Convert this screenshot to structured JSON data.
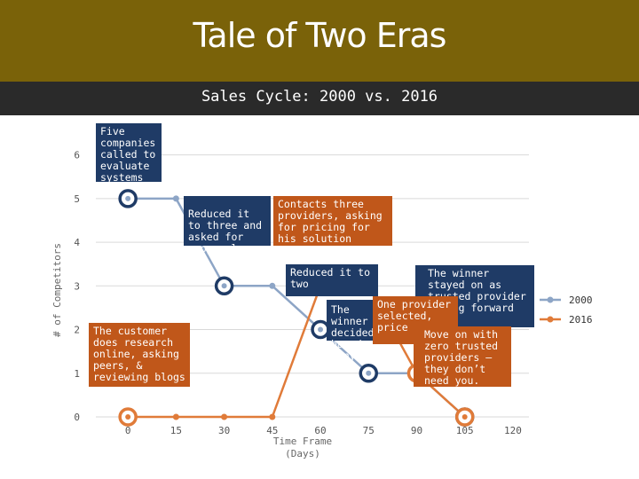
{
  "header": {
    "title": "Tale of Two Eras",
    "subtitle": "Sales Cycle: 2000 vs. 2016"
  },
  "colors": {
    "title_band": "#7a6209",
    "subtitle_band": "#2a2a2a",
    "series_2000": "#1f3b66",
    "series_2016": "#e07b39",
    "callout_blue": "#1f3b66",
    "callout_orange": "#c0571a"
  },
  "chart_data": {
    "type": "line",
    "title": "Tale of Two Eras",
    "subtitle": "Sales Cycle: 2000 vs. 2016",
    "xlabel": "Time Frame (Days)",
    "ylabel": "# of Competitors",
    "x_ticks": [
      0,
      15,
      30,
      45,
      60,
      75,
      90,
      105,
      120
    ],
    "y_ticks": [
      0,
      1,
      2,
      3,
      4,
      5,
      6
    ],
    "xlim": [
      -10,
      125
    ],
    "ylim": [
      0,
      6.5
    ],
    "grid": "horizontal",
    "legend": "right",
    "series": [
      {
        "name": "2000",
        "color": "#1f3b66",
        "x": [
          0,
          15,
          30,
          45,
          60,
          75,
          90,
          105
        ],
        "y": [
          5,
          5,
          3,
          3,
          2,
          1,
          1,
          0
        ],
        "highlighted": [
          0,
          2,
          4,
          5,
          7
        ]
      },
      {
        "name": "2016",
        "color": "#e07b39",
        "x": [
          0,
          15,
          30,
          45,
          60,
          75,
          90,
          105
        ],
        "y": [
          0,
          0,
          0,
          0,
          3,
          3,
          1,
          0
        ],
        "highlighted": [
          0,
          4,
          6,
          7
        ]
      }
    ],
    "annotations": [
      {
        "id": "a1",
        "text": "Five companies called to evaluate systems",
        "series": "2000"
      },
      {
        "id": "a2",
        "text": "Reduced it to three and asked for proposals",
        "series": "2000"
      },
      {
        "id": "a3",
        "text": "Contacts three providers, asking for pricing for his solution",
        "series": "2016"
      },
      {
        "id": "a4",
        "text": "Reduced it to two",
        "series": "2000"
      },
      {
        "id": "a5",
        "text": "The winner decided based on many",
        "series": "2000"
      },
      {
        "id": "a6",
        "text": "The winner stayed on as trusted provider moving forward",
        "series": "2000"
      },
      {
        "id": "a7",
        "text": "One provider selected, price",
        "series": "2016"
      },
      {
        "id": "a8",
        "text": "The customer does research online, asking peers, & reviewing blogs",
        "series": "2016"
      },
      {
        "id": "a9",
        "text": "Move on with zero trusted providers – they don’t need you.",
        "series": "2016"
      }
    ]
  }
}
